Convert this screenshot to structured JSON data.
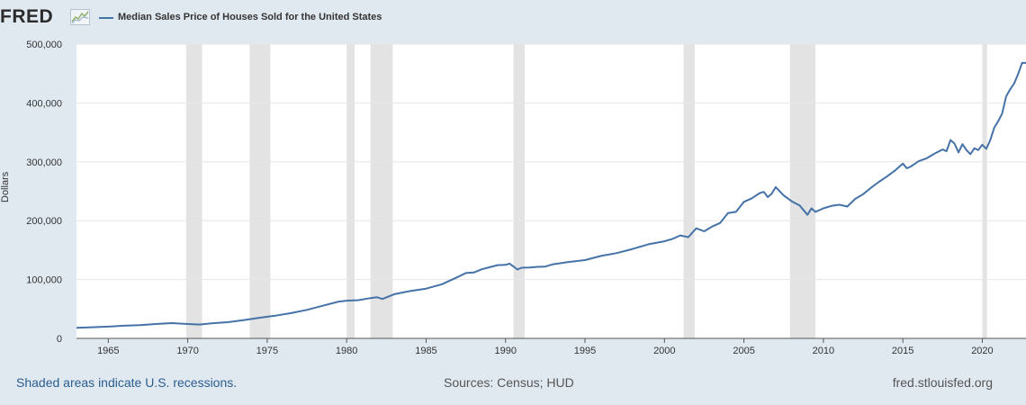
{
  "header": {
    "logo": "FRED",
    "series_title": "Median Sales Price of Houses Sold for the United States"
  },
  "colors": {
    "background": "#e1e9f0",
    "plot_background": "#ffffff",
    "series_line": "#4572a7",
    "recession_band": "#e3e3e3",
    "grid": "#e6e6e6"
  },
  "footer": {
    "recession_note": "Shaded areas indicate U.S. recessions.",
    "sources": "Sources: Census; HUD",
    "site": "fred.stlouisfed.org"
  },
  "chart_data": {
    "type": "line",
    "title": "",
    "xlabel": "",
    "ylabel": "Dollars",
    "xlim": [
      1963.0,
      2022.75
    ],
    "ylim": [
      0,
      500000
    ],
    "y_ticks": [
      0,
      100000,
      200000,
      300000,
      400000,
      500000
    ],
    "y_tick_labels": [
      "0",
      "100,000",
      "200,000",
      "300,000",
      "400,000",
      "500,000"
    ],
    "x_ticks": [
      1965,
      1970,
      1975,
      1980,
      1985,
      1990,
      1995,
      2000,
      2005,
      2010,
      2015,
      2020
    ],
    "x_tick_labels": [
      "1965",
      "1970",
      "1975",
      "1980",
      "1985",
      "1990",
      "1995",
      "2000",
      "2005",
      "2010",
      "2015",
      "2020"
    ],
    "grid": true,
    "legend": "top-left",
    "recessions": [
      [
        1969.9,
        1970.9
      ],
      [
        1973.9,
        1975.2
      ],
      [
        1980.0,
        1980.5
      ],
      [
        1981.5,
        1982.9
      ],
      [
        1990.5,
        1991.2
      ],
      [
        2001.2,
        2001.9
      ],
      [
        2007.9,
        2009.5
      ],
      [
        2020.0,
        2020.3
      ]
    ],
    "series": [
      {
        "name": "Median Sales Price of Houses Sold for the United States",
        "x": [
          1963.0,
          1964.0,
          1965.0,
          1966.0,
          1967.0,
          1968.0,
          1969.0,
          1970.0,
          1970.75,
          1971.5,
          1972.5,
          1973.5,
          1974.5,
          1975.5,
          1976.5,
          1977.5,
          1978.5,
          1979.5,
          1980.0,
          1980.75,
          1981.5,
          1981.9,
          1982.25,
          1983.0,
          1984.0,
          1985.0,
          1986.0,
          1987.0,
          1987.5,
          1988.0,
          1988.5,
          1989.0,
          1989.5,
          1990.0,
          1990.25,
          1990.5,
          1990.75,
          1991.0,
          1991.5,
          1992.0,
          1992.5,
          1993.0,
          1994.0,
          1995.0,
          1996.0,
          1997.0,
          1998.0,
          1999.0,
          2000.0,
          2000.5,
          2001.0,
          2001.5,
          2002.0,
          2002.5,
          2003.0,
          2003.5,
          2004.0,
          2004.5,
          2005.0,
          2005.5,
          2006.0,
          2006.25,
          2006.5,
          2006.75,
          2007.0,
          2007.5,
          2008.0,
          2008.5,
          2009.0,
          2009.25,
          2009.5,
          2010.0,
          2010.5,
          2011.0,
          2011.5,
          2012.0,
          2012.5,
          2013.0,
          2013.5,
          2014.0,
          2014.5,
          2015.0,
          2015.25,
          2015.5,
          2016.0,
          2016.5,
          2017.0,
          2017.5,
          2017.75,
          2018.0,
          2018.25,
          2018.5,
          2018.75,
          2019.0,
          2019.25,
          2019.5,
          2019.75,
          2020.0,
          2020.25,
          2020.5,
          2020.75,
          2021.0,
          2021.25,
          2021.5,
          2021.75,
          2022.0,
          2022.25,
          2022.5,
          2022.75
        ],
        "values": [
          18000,
          19000,
          20000,
          21500,
          22500,
          24500,
          26000,
          24500,
          23500,
          25500,
          27500,
          31000,
          35000,
          38500,
          43000,
          48500,
          55500,
          62500,
          64000,
          65000,
          68500,
          70000,
          67000,
          75000,
          80500,
          84500,
          92000,
          104500,
          111000,
          112000,
          117500,
          121000,
          124500,
          125000,
          127000,
          122000,
          117000,
          120000,
          120500,
          121500,
          122000,
          126000,
          130000,
          133000,
          140000,
          145000,
          152000,
          160000,
          165000,
          169000,
          175000,
          172000,
          187000,
          182000,
          190000,
          196000,
          213000,
          215000,
          232000,
          238000,
          247000,
          249000,
          240000,
          246000,
          257000,
          243000,
          233000,
          226000,
          210000,
          221000,
          215000,
          221000,
          225000,
          227000,
          224000,
          237000,
          245000,
          256000,
          266000,
          275000,
          285000,
          297000,
          289000,
          292000,
          301000,
          306000,
          314000,
          321000,
          318000,
          337000,
          331000,
          316000,
          330000,
          320000,
          313000,
          323000,
          320000,
          329000,
          322000,
          337000,
          358000,
          369000,
          382000,
          411000,
          423000,
          433000,
          449000,
          468000,
          468000
        ]
      }
    ]
  }
}
